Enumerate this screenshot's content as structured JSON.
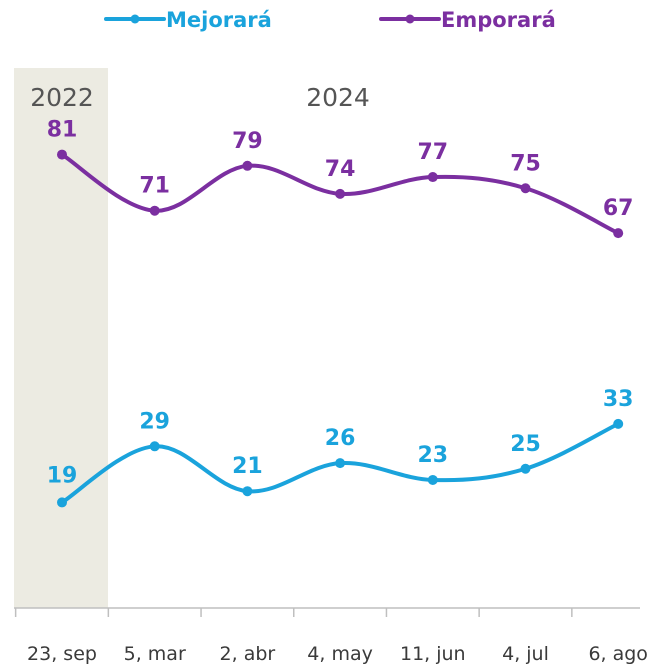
{
  "chart_data": {
    "type": "line",
    "title": "",
    "xlabel": "",
    "ylabel": "",
    "categories": [
      "23, sep",
      "5, mar",
      "2, abr",
      "4, may",
      "11, jun",
      "4, jul",
      "6, ago"
    ],
    "year_groups": [
      {
        "label": "2022",
        "highlight": true
      },
      {
        "label": "2024",
        "highlight": false
      }
    ],
    "series": [
      {
        "name": "Mejorará",
        "color": "#1aa3dc",
        "values": [
          19,
          29,
          21,
          26,
          23,
          25,
          33
        ]
      },
      {
        "name": "Emporará",
        "color": "#7b2fa0",
        "values": [
          81,
          71,
          79,
          74,
          77,
          75,
          67
        ]
      }
    ],
    "ylim": [
      0,
      100
    ],
    "grid": false,
    "legend_position": "top",
    "highlight_color": "#ecebe2",
    "axis_color": "#bfbfbf"
  }
}
